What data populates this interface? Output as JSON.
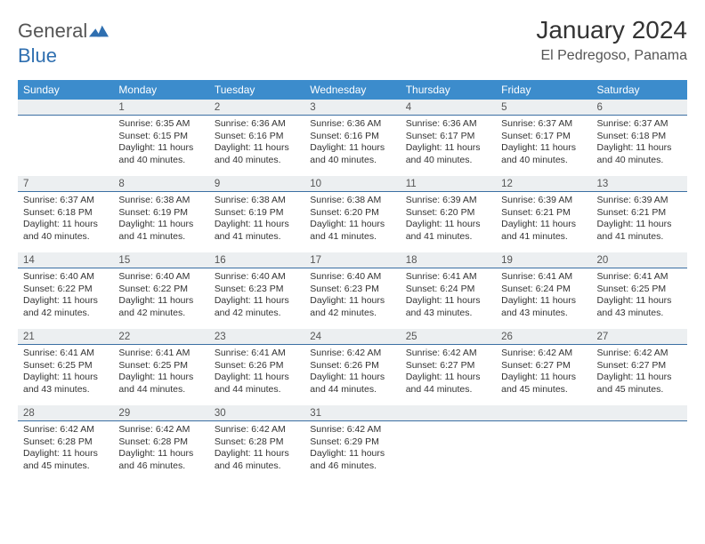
{
  "logo": {
    "word1": "General",
    "word2": "Blue"
  },
  "title": "January 2024",
  "location": "El Pedregoso, Panama",
  "colors": {
    "header_bg": "#3c8ccc",
    "header_text": "#ffffff",
    "daynum_bg": "#eceff1",
    "daynum_border": "#3b6fa3",
    "body_text": "#333333",
    "logo_blue": "#2f6fb0"
  },
  "weekdays": [
    "Sunday",
    "Monday",
    "Tuesday",
    "Wednesday",
    "Thursday",
    "Friday",
    "Saturday"
  ],
  "weeks": [
    [
      {
        "n": "",
        "lines": [
          "",
          "",
          "",
          ""
        ]
      },
      {
        "n": "1",
        "lines": [
          "Sunrise: 6:35 AM",
          "Sunset: 6:15 PM",
          "Daylight: 11 hours",
          "and 40 minutes."
        ]
      },
      {
        "n": "2",
        "lines": [
          "Sunrise: 6:36 AM",
          "Sunset: 6:16 PM",
          "Daylight: 11 hours",
          "and 40 minutes."
        ]
      },
      {
        "n": "3",
        "lines": [
          "Sunrise: 6:36 AM",
          "Sunset: 6:16 PM",
          "Daylight: 11 hours",
          "and 40 minutes."
        ]
      },
      {
        "n": "4",
        "lines": [
          "Sunrise: 6:36 AM",
          "Sunset: 6:17 PM",
          "Daylight: 11 hours",
          "and 40 minutes."
        ]
      },
      {
        "n": "5",
        "lines": [
          "Sunrise: 6:37 AM",
          "Sunset: 6:17 PM",
          "Daylight: 11 hours",
          "and 40 minutes."
        ]
      },
      {
        "n": "6",
        "lines": [
          "Sunrise: 6:37 AM",
          "Sunset: 6:18 PM",
          "Daylight: 11 hours",
          "and 40 minutes."
        ]
      }
    ],
    [
      {
        "n": "7",
        "lines": [
          "Sunrise: 6:37 AM",
          "Sunset: 6:18 PM",
          "Daylight: 11 hours",
          "and 40 minutes."
        ]
      },
      {
        "n": "8",
        "lines": [
          "Sunrise: 6:38 AM",
          "Sunset: 6:19 PM",
          "Daylight: 11 hours",
          "and 41 minutes."
        ]
      },
      {
        "n": "9",
        "lines": [
          "Sunrise: 6:38 AM",
          "Sunset: 6:19 PM",
          "Daylight: 11 hours",
          "and 41 minutes."
        ]
      },
      {
        "n": "10",
        "lines": [
          "Sunrise: 6:38 AM",
          "Sunset: 6:20 PM",
          "Daylight: 11 hours",
          "and 41 minutes."
        ]
      },
      {
        "n": "11",
        "lines": [
          "Sunrise: 6:39 AM",
          "Sunset: 6:20 PM",
          "Daylight: 11 hours",
          "and 41 minutes."
        ]
      },
      {
        "n": "12",
        "lines": [
          "Sunrise: 6:39 AM",
          "Sunset: 6:21 PM",
          "Daylight: 11 hours",
          "and 41 minutes."
        ]
      },
      {
        "n": "13",
        "lines": [
          "Sunrise: 6:39 AM",
          "Sunset: 6:21 PM",
          "Daylight: 11 hours",
          "and 41 minutes."
        ]
      }
    ],
    [
      {
        "n": "14",
        "lines": [
          "Sunrise: 6:40 AM",
          "Sunset: 6:22 PM",
          "Daylight: 11 hours",
          "and 42 minutes."
        ]
      },
      {
        "n": "15",
        "lines": [
          "Sunrise: 6:40 AM",
          "Sunset: 6:22 PM",
          "Daylight: 11 hours",
          "and 42 minutes."
        ]
      },
      {
        "n": "16",
        "lines": [
          "Sunrise: 6:40 AM",
          "Sunset: 6:23 PM",
          "Daylight: 11 hours",
          "and 42 minutes."
        ]
      },
      {
        "n": "17",
        "lines": [
          "Sunrise: 6:40 AM",
          "Sunset: 6:23 PM",
          "Daylight: 11 hours",
          "and 42 minutes."
        ]
      },
      {
        "n": "18",
        "lines": [
          "Sunrise: 6:41 AM",
          "Sunset: 6:24 PM",
          "Daylight: 11 hours",
          "and 43 minutes."
        ]
      },
      {
        "n": "19",
        "lines": [
          "Sunrise: 6:41 AM",
          "Sunset: 6:24 PM",
          "Daylight: 11 hours",
          "and 43 minutes."
        ]
      },
      {
        "n": "20",
        "lines": [
          "Sunrise: 6:41 AM",
          "Sunset: 6:25 PM",
          "Daylight: 11 hours",
          "and 43 minutes."
        ]
      }
    ],
    [
      {
        "n": "21",
        "lines": [
          "Sunrise: 6:41 AM",
          "Sunset: 6:25 PM",
          "Daylight: 11 hours",
          "and 43 minutes."
        ]
      },
      {
        "n": "22",
        "lines": [
          "Sunrise: 6:41 AM",
          "Sunset: 6:25 PM",
          "Daylight: 11 hours",
          "and 44 minutes."
        ]
      },
      {
        "n": "23",
        "lines": [
          "Sunrise: 6:41 AM",
          "Sunset: 6:26 PM",
          "Daylight: 11 hours",
          "and 44 minutes."
        ]
      },
      {
        "n": "24",
        "lines": [
          "Sunrise: 6:42 AM",
          "Sunset: 6:26 PM",
          "Daylight: 11 hours",
          "and 44 minutes."
        ]
      },
      {
        "n": "25",
        "lines": [
          "Sunrise: 6:42 AM",
          "Sunset: 6:27 PM",
          "Daylight: 11 hours",
          "and 44 minutes."
        ]
      },
      {
        "n": "26",
        "lines": [
          "Sunrise: 6:42 AM",
          "Sunset: 6:27 PM",
          "Daylight: 11 hours",
          "and 45 minutes."
        ]
      },
      {
        "n": "27",
        "lines": [
          "Sunrise: 6:42 AM",
          "Sunset: 6:27 PM",
          "Daylight: 11 hours",
          "and 45 minutes."
        ]
      }
    ],
    [
      {
        "n": "28",
        "lines": [
          "Sunrise: 6:42 AM",
          "Sunset: 6:28 PM",
          "Daylight: 11 hours",
          "and 45 minutes."
        ]
      },
      {
        "n": "29",
        "lines": [
          "Sunrise: 6:42 AM",
          "Sunset: 6:28 PM",
          "Daylight: 11 hours",
          "and 46 minutes."
        ]
      },
      {
        "n": "30",
        "lines": [
          "Sunrise: 6:42 AM",
          "Sunset: 6:28 PM",
          "Daylight: 11 hours",
          "and 46 minutes."
        ]
      },
      {
        "n": "31",
        "lines": [
          "Sunrise: 6:42 AM",
          "Sunset: 6:29 PM",
          "Daylight: 11 hours",
          "and 46 minutes."
        ]
      },
      {
        "n": "",
        "lines": [
          "",
          "",
          "",
          ""
        ]
      },
      {
        "n": "",
        "lines": [
          "",
          "",
          "",
          ""
        ]
      },
      {
        "n": "",
        "lines": [
          "",
          "",
          "",
          ""
        ]
      }
    ]
  ]
}
